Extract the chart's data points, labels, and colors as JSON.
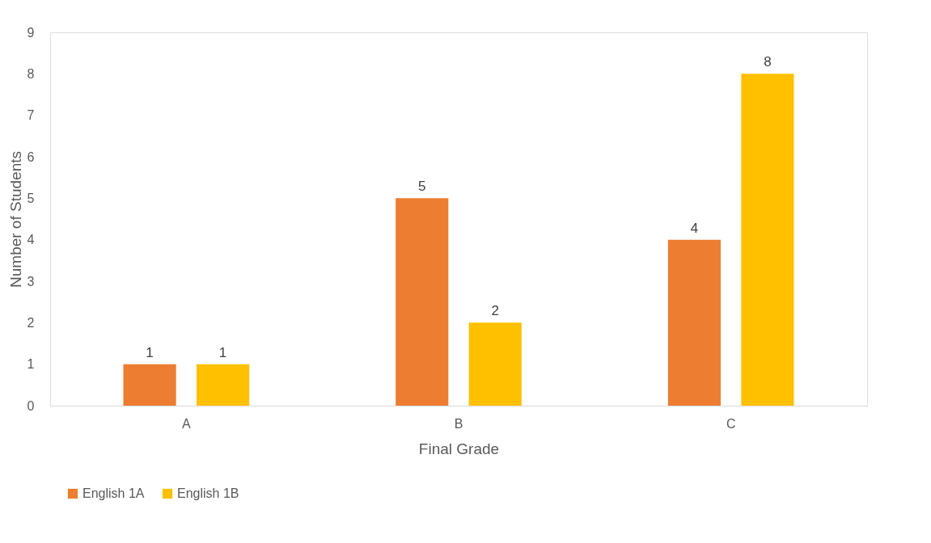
{
  "chart_data": {
    "type": "bar",
    "xlabel": "Final Grade",
    "ylabel": "Number of Students",
    "categories": [
      "A",
      "B",
      "C"
    ],
    "series": [
      {
        "name": "English 1A",
        "color": "#ed7d31",
        "values": [
          1,
          5,
          4
        ]
      },
      {
        "name": "English 1B",
        "color": "#ffc000",
        "values": [
          1,
          2,
          8
        ]
      }
    ],
    "ylim": [
      0,
      9
    ],
    "yticks": [
      0,
      1,
      2,
      3,
      4,
      5,
      6,
      7,
      8,
      9
    ],
    "grid": false,
    "legend": "bottom",
    "data_labels": true
  }
}
